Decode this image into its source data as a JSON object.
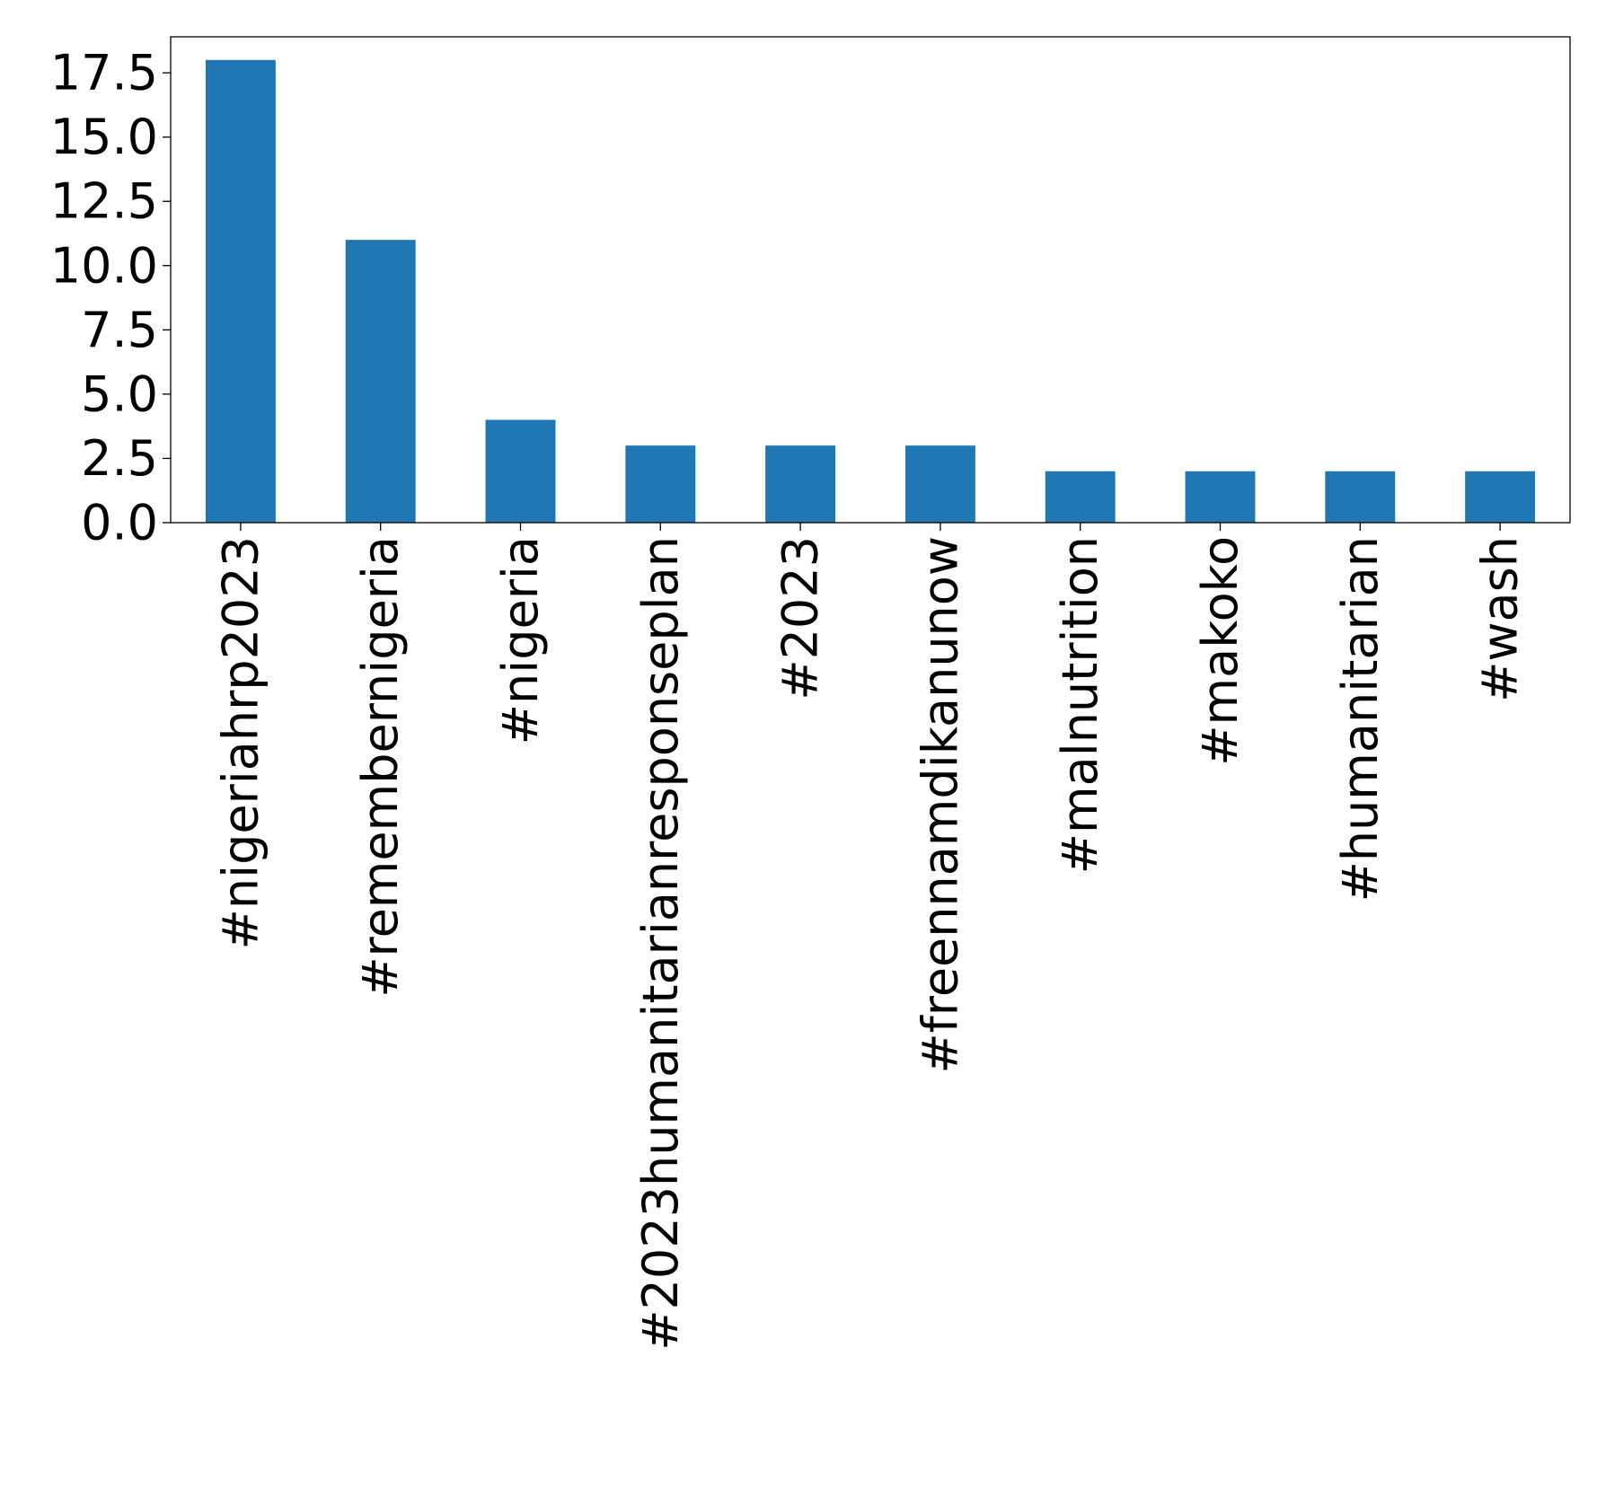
{
  "chart_data": {
    "type": "bar",
    "title": "",
    "xlabel": "",
    "ylabel": "",
    "categories": [
      "#nigeriahrp2023",
      "#remembernigeria",
      "#nigeria",
      "#2023humanitarianresponseplan",
      "#2023",
      "#freennamdikanunow",
      "#malnutrition",
      "#makoko",
      "#humanitarian",
      "#wash"
    ],
    "values": [
      18,
      11,
      4,
      3,
      3,
      3,
      2,
      2,
      2,
      2
    ],
    "ylim": [
      0,
      18.9
    ],
    "yticks": [
      "0.0",
      "2.5",
      "5.0",
      "7.5",
      "10.0",
      "12.5",
      "15.0",
      "17.5"
    ],
    "bar_color": "#1f77b4",
    "grid": false,
    "legend": "none"
  }
}
